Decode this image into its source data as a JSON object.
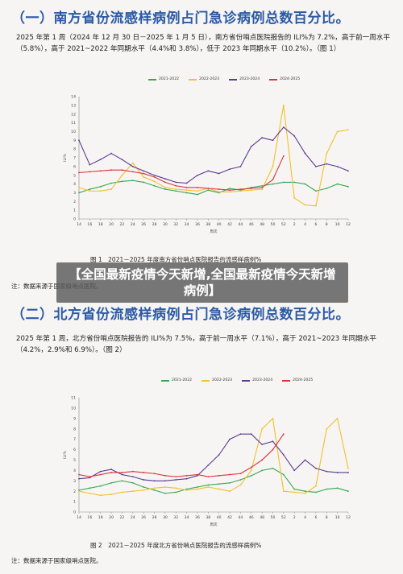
{
  "sections": [
    {
      "title": "（一）南方省份流感样病例占门急诊病例总数百分比。",
      "text": "2025 年第 1 周（2024 年 12 月 30 日－2025 年 1 月 5 日），南方省份哨点医院报告的 ILI%为 7.2%，高于前一周水平（5.8%），高于 2021~2022 年同期水平（4.4%和 3.8%），低于 2023 年同期水平（10.2%）。（图 1）",
      "caption": "图 1　2021－2025 年度南方省份哨点医院报告的流感样病例%",
      "note": "注：数据来源于国家级哨点医院。"
    },
    {
      "title": "（二）北方省份流感样病例占门急诊病例总数百分比。",
      "text": "2025 年第 1 周，北方省份哨点医院报告的 ILI%为 7.5%，高于前一周水平（7.1%），高于 2021~2023 年同期水平（4.2%，2.9%和 6.9%）。（图 2）",
      "caption": "图 2　2021－2025 年度北方省份哨点医院报告的流感样病例%",
      "note": "注：数据来源于国家级哨点医院。"
    }
  ],
  "banner": "【全国最新疫情今天新增,全国最新疫情今天新增病例】",
  "colors": {
    "title": "#2c5aa6",
    "s2021": "#3aa655",
    "s2022": "#f2c02a",
    "s2023": "#5b3a93",
    "s2024": "#d9353a"
  },
  "chart_data": [
    {
      "type": "line",
      "title": "",
      "xlabel": "周次",
      "ylabel": "ILI%",
      "categories": [
        "14",
        "16",
        "18",
        "20",
        "22",
        "24",
        "26",
        "28",
        "30",
        "32",
        "34",
        "36",
        "38",
        "40",
        "42",
        "44",
        "46",
        "48",
        "50",
        "52",
        "2",
        "4",
        "6",
        "8",
        "10",
        "12"
      ],
      "ylim": [
        0,
        14
      ],
      "yticks": [
        0,
        1,
        2,
        3,
        4,
        5,
        6,
        7,
        8,
        9,
        10,
        11,
        12,
        13,
        14
      ],
      "legend_position": "top",
      "series": [
        {
          "name": "2021-2022",
          "color": "#3aa655",
          "values": [
            3.0,
            3.4,
            3.7,
            4.1,
            4.3,
            4.4,
            4.2,
            3.8,
            3.4,
            3.2,
            3.0,
            2.8,
            3.3,
            3.0,
            3.5,
            3.3,
            3.6,
            3.8,
            4.0,
            4.2,
            4.2,
            4.0,
            3.2,
            3.5,
            4.0,
            3.7
          ]
        },
        {
          "name": "2022-2023",
          "color": "#f2c02a",
          "values": [
            3.6,
            3.2,
            3.2,
            3.4,
            5.0,
            6.4,
            4.8,
            4.3,
            3.6,
            3.4,
            3.3,
            3.2,
            3.5,
            3.1,
            3.1,
            3.2,
            3.3,
            3.4,
            6.0,
            13.0,
            2.4,
            1.6,
            1.5,
            7.5,
            10.0,
            10.2
          ]
        },
        {
          "name": "2023-2024",
          "color": "#5b3a93",
          "values": [
            9.0,
            6.2,
            6.8,
            7.5,
            6.8,
            6.0,
            5.5,
            5.0,
            4.6,
            4.2,
            4.1,
            5.0,
            5.5,
            5.2,
            5.7,
            6.0,
            8.3,
            9.3,
            9.0,
            10.5,
            9.5,
            7.5,
            6.0,
            6.3,
            6.0,
            5.5
          ]
        },
        {
          "name": "2024-2025",
          "color": "#d9353a",
          "values": [
            5.3,
            5.4,
            5.5,
            5.6,
            5.6,
            5.4,
            5.2,
            4.8,
            4.2,
            3.8,
            3.6,
            3.6,
            3.5,
            3.4,
            3.3,
            3.4,
            3.5,
            3.6,
            4.5,
            7.2,
            null,
            null,
            null,
            null,
            null,
            null
          ]
        }
      ]
    },
    {
      "type": "line",
      "title": "",
      "xlabel": "周次",
      "ylabel": "ILI%",
      "categories": [
        "14",
        "16",
        "18",
        "20",
        "22",
        "24",
        "26",
        "28",
        "30",
        "32",
        "34",
        "36",
        "38",
        "40",
        "42",
        "44",
        "46",
        "48",
        "50",
        "52",
        "2",
        "4",
        "6",
        "8",
        "10",
        "12"
      ],
      "ylim": [
        0,
        11
      ],
      "yticks": [
        0,
        1,
        2,
        3,
        4,
        5,
        6,
        7,
        8,
        9,
        10,
        11
      ],
      "legend_position": "top",
      "series": [
        {
          "name": "2021-2022",
          "color": "#3aa655",
          "values": [
            2.1,
            2.3,
            2.5,
            2.8,
            3.0,
            2.8,
            2.4,
            2.1,
            1.8,
            1.9,
            2.2,
            2.4,
            2.6,
            2.7,
            2.8,
            3.1,
            3.5,
            4.0,
            4.2,
            3.6,
            2.2,
            2.0,
            1.9,
            2.2,
            2.3,
            2.0
          ]
        },
        {
          "name": "2022-2023",
          "color": "#f2c02a",
          "values": [
            2.0,
            1.8,
            1.6,
            1.7,
            1.9,
            2.0,
            2.1,
            2.3,
            2.4,
            2.3,
            2.1,
            2.2,
            2.4,
            2.2,
            2.0,
            2.6,
            4.0,
            8.0,
            9.0,
            2.0,
            1.9,
            1.8,
            2.5,
            8.0,
            9.0,
            4.2
          ]
        },
        {
          "name": "2023-2024",
          "color": "#5b3a93",
          "values": [
            3.2,
            3.3,
            3.9,
            4.1,
            3.6,
            3.4,
            3.1,
            3.0,
            3.0,
            3.1,
            3.2,
            3.5,
            4.5,
            5.5,
            7.0,
            7.5,
            7.5,
            6.5,
            6.8,
            5.5,
            4.0,
            5.0,
            4.2,
            3.9,
            3.8,
            3.8
          ]
        },
        {
          "name": "2024-2025",
          "color": "#d9353a",
          "values": [
            3.6,
            3.4,
            3.6,
            3.8,
            3.8,
            3.9,
            3.8,
            3.7,
            3.5,
            3.4,
            3.5,
            3.6,
            3.4,
            3.5,
            3.6,
            3.7,
            4.3,
            5.0,
            6.0,
            7.5,
            null,
            null,
            null,
            null,
            null,
            null
          ]
        }
      ]
    }
  ]
}
